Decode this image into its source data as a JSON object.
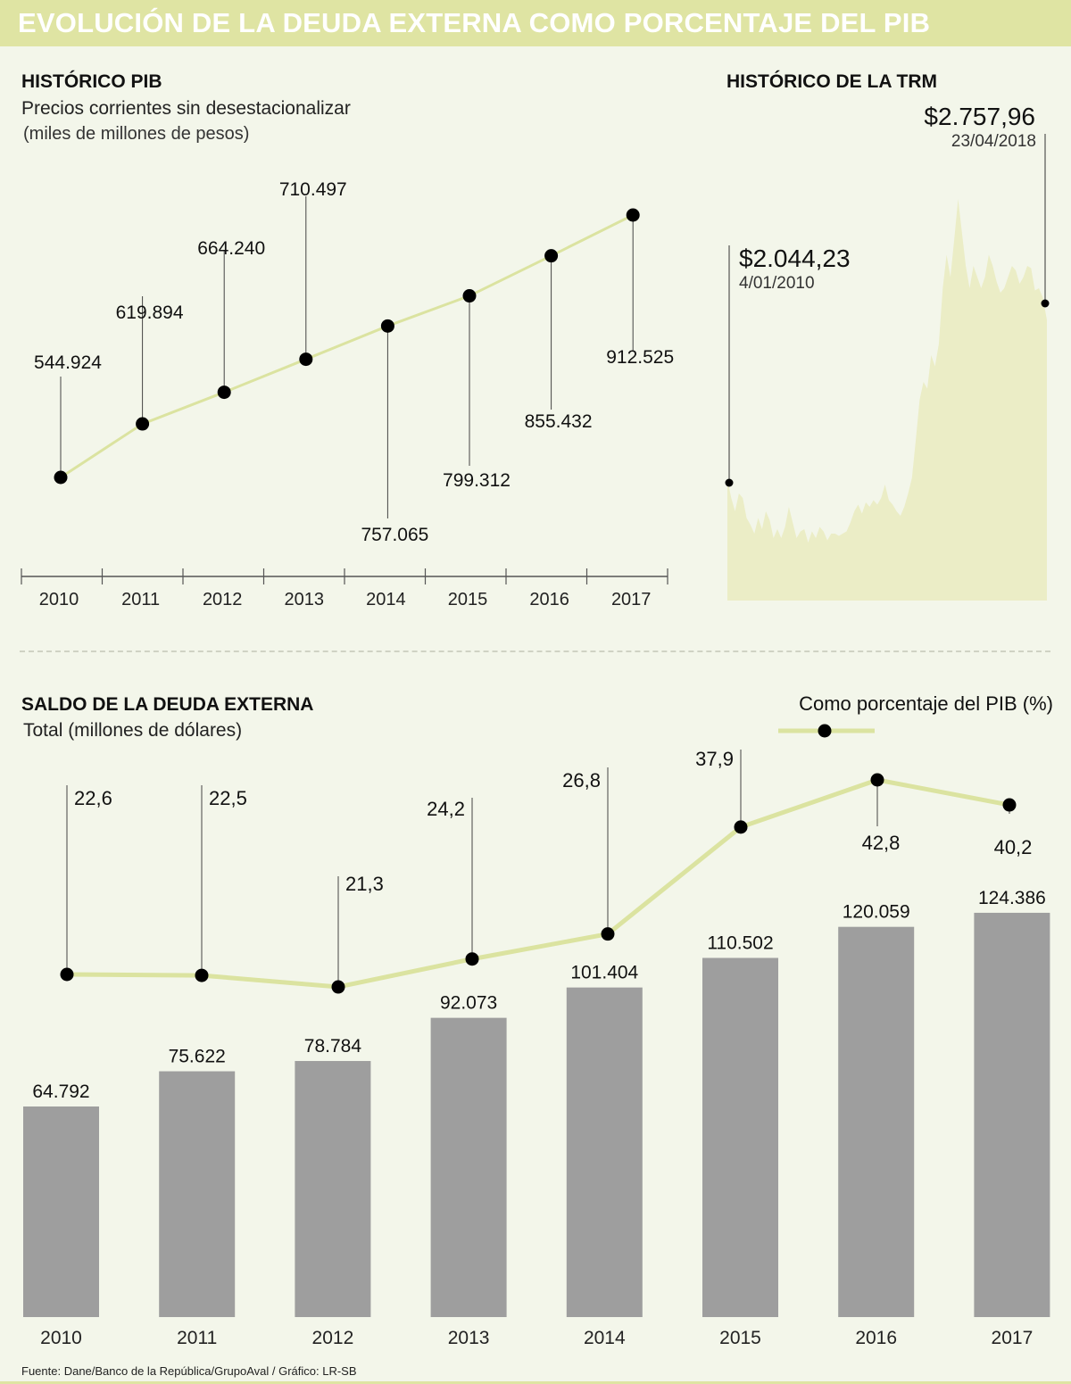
{
  "header": {
    "title": "EVOLUCIÓN DE LA DEUDA EXTERNA COMO PORCENTAJE DEL PIB"
  },
  "pib": {
    "title": "HISTÓRICO PIB",
    "subtitle": "Precios corrientes sin desestacionalizar",
    "units": "(miles de millones de pesos)"
  },
  "trm": {
    "title": "HISTÓRICO DE LA TRM",
    "start_value": "$2.044,23",
    "start_date": "4/01/2010",
    "peak_value": "$2.757,96",
    "peak_date": "23/04/2018"
  },
  "debt": {
    "title": "SALDO DE LA DEUDA EXTERNA",
    "subtitle": "Total (millones de dólares)",
    "legend": "Como porcentaje del PIB (%)"
  },
  "footer": {
    "source": "Fuente: Dane/Banco de la República/GrupoAval  / Gráfico: LR-SB"
  },
  "colors": {
    "accent": "#dfe4a3",
    "bar": "#9e9e9e",
    "line": "#dbe3a0",
    "dot": "#000000",
    "area": "#ebedc6"
  },
  "chart_data": [
    {
      "type": "line",
      "title": "HISTÓRICO PIB",
      "categories": [
        "2010",
        "2011",
        "2012",
        "2013",
        "2014",
        "2015",
        "2016",
        "2017"
      ],
      "values": [
        544924,
        619894,
        664240,
        710497,
        757065,
        799312,
        855432,
        912525
      ],
      "labels": [
        "544.924",
        "619.894",
        "664.240",
        "710.497",
        "757.065",
        "799.312",
        "855.432",
        "912.525"
      ],
      "label_side": [
        "above",
        "above",
        "above",
        "above",
        "below",
        "below",
        "below",
        "below"
      ],
      "ylabel": "miles de millones de pesos",
      "ylim": [
        500000,
        950000
      ]
    },
    {
      "type": "area",
      "title": "HISTÓRICO DE LA TRM",
      "x": [
        2010.0,
        2010.1,
        2010.2,
        2010.3,
        2010.4,
        2010.5,
        2010.6,
        2010.7,
        2010.8,
        2010.9,
        2011.0,
        2011.1,
        2011.2,
        2011.3,
        2011.4,
        2011.5,
        2011.6,
        2011.7,
        2011.8,
        2011.9,
        2012.0,
        2012.1,
        2012.2,
        2012.3,
        2012.4,
        2012.5,
        2012.6,
        2012.7,
        2012.8,
        2012.9,
        2013.0,
        2013.1,
        2013.2,
        2013.3,
        2013.4,
        2013.5,
        2013.6,
        2013.7,
        2013.8,
        2013.9,
        2014.0,
        2014.1,
        2014.2,
        2014.3,
        2014.4,
        2014.5,
        2014.6,
        2014.7,
        2014.8,
        2014.9,
        2015.0,
        2015.1,
        2015.2,
        2015.3,
        2015.4,
        2015.5,
        2015.6,
        2015.7,
        2015.8,
        2015.9,
        2016.0,
        2016.1,
        2016.2,
        2016.3,
        2016.4,
        2016.5,
        2016.6,
        2016.7,
        2016.8,
        2016.9,
        2017.0,
        2017.1,
        2017.2,
        2017.3,
        2017.4,
        2017.5,
        2017.6,
        2017.7,
        2017.8,
        2017.9,
        2018.0,
        2018.1,
        2018.2,
        2018.31
      ],
      "values": [
        2044,
        1960,
        1900,
        1980,
        1960,
        1870,
        1840,
        1800,
        1870,
        1820,
        1900,
        1860,
        1780,
        1820,
        1780,
        1830,
        1920,
        1850,
        1780,
        1810,
        1820,
        1760,
        1810,
        1780,
        1830,
        1810,
        1770,
        1800,
        1800,
        1790,
        1800,
        1810,
        1850,
        1900,
        1930,
        1890,
        1940,
        1920,
        1950,
        1930,
        1960,
        2020,
        1950,
        1930,
        1900,
        1880,
        1920,
        1980,
        2050,
        2220,
        2400,
        2480,
        2450,
        2600,
        2550,
        2650,
        2900,
        3050,
        2950,
        3120,
        3300,
        3150,
        3000,
        2900,
        3000,
        2950,
        2900,
        2950,
        3050,
        3000,
        2930,
        2880,
        2900,
        2950,
        3000,
        2980,
        2920,
        2950,
        3000,
        2990,
        2890,
        2900,
        2860,
        2757.96
      ],
      "start": {
        "date": "4/01/2010",
        "value": 2044.23
      },
      "end": {
        "date": "23/04/2018",
        "value": 2757.96
      },
      "ylim": [
        1500,
        3500
      ]
    },
    {
      "type": "bar",
      "title": "SALDO DE LA DEUDA EXTERNA",
      "categories": [
        "2010",
        "2011",
        "2012",
        "2013",
        "2014",
        "2015",
        "2016",
        "2017"
      ],
      "series": [
        {
          "name": "Total (millones de dólares)",
          "values": [
            64792,
            75622,
            78784,
            92073,
            101404,
            110502,
            120059,
            124386
          ],
          "labels": [
            "64.792",
            "75.622",
            "78.784",
            "92.073",
            "101.404",
            "110.502",
            "120.059",
            "124.386"
          ]
        },
        {
          "name": "Como porcentaje del PIB (%)",
          "type": "line",
          "values": [
            22.6,
            22.5,
            21.3,
            24.2,
            26.8,
            37.9,
            42.8,
            40.2
          ],
          "labels": [
            "22,6",
            "22,5",
            "21,3",
            "24,2",
            "26,8",
            "37,9",
            "42,8",
            "40,2"
          ]
        }
      ],
      "ylim": [
        0,
        130000
      ]
    }
  ]
}
